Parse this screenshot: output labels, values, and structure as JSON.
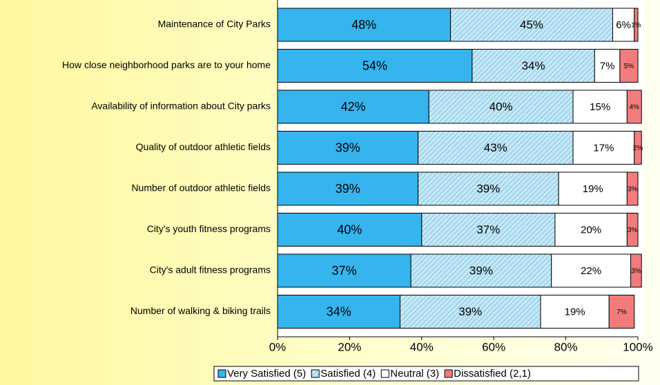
{
  "chart_data": {
    "type": "stacked_barh",
    "categories": [
      "Maintenance of City Parks",
      "How close neighborhood parks are to your home",
      "Availability of information about City parks",
      "Quality of outdoor athletic fields",
      "Number of outdoor athletic fields",
      "City's youth fitness programs",
      "City's adult fitness programs",
      "Number of walking & biking trails"
    ],
    "series": [
      {
        "name": "Very Satisfied (5)",
        "color": "#35b4ee",
        "values": [
          48,
          54,
          42,
          39,
          39,
          40,
          37,
          34
        ],
        "value_labels": [
          "48%",
          "54%",
          "42%",
          "39%",
          "39%",
          "40%",
          "37%",
          "34%"
        ]
      },
      {
        "name": "Satisfied (4)",
        "color": "#c4e8f8",
        "pattern": "hatch",
        "values": [
          45,
          34,
          40,
          43,
          39,
          37,
          39,
          39
        ],
        "value_labels": [
          "45%",
          "34%",
          "40%",
          "43%",
          "39%",
          "37%",
          "39%",
          "39%"
        ]
      },
      {
        "name": "Neutral (3)",
        "color": "#ffffff",
        "values": [
          6,
          7,
          15,
          17,
          19,
          20,
          22,
          19
        ],
        "value_labels": [
          "6%",
          "7%",
          "15%",
          "17%",
          "19%",
          "20%",
          "22%",
          "19%"
        ]
      },
      {
        "name": "Dissatisfied (2,1)",
        "color": "#f27b7b",
        "values": [
          1,
          5,
          4,
          2,
          3,
          3,
          3,
          7
        ],
        "value_labels": [
          "1%",
          "5%",
          "4%",
          "2%",
          "3%",
          "3%",
          "3%",
          "7%"
        ]
      }
    ],
    "xlim": [
      0,
      100
    ],
    "xticks": [
      {
        "value": 0,
        "label": "0%"
      },
      {
        "value": 20,
        "label": "20%"
      },
      {
        "value": 40,
        "label": "40%"
      },
      {
        "value": 60,
        "label": "60%"
      },
      {
        "value": 80,
        "label": "80%"
      },
      {
        "value": 100,
        "label": "100%"
      }
    ],
    "legend": "bottom"
  }
}
